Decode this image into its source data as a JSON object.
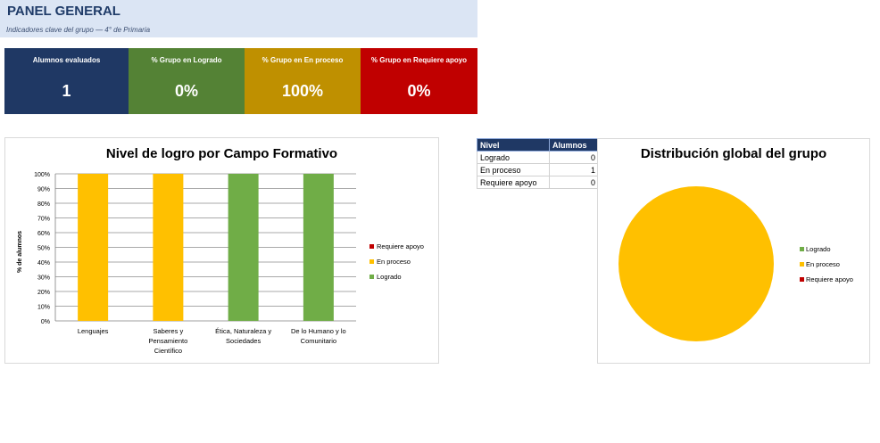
{
  "header": {
    "title": "PANEL GENERAL",
    "subtitle": "Indicadores clave del grupo — 4° de Primaria"
  },
  "kpis": [
    {
      "label": "Alumnos evaluados",
      "value": "1",
      "color": "#1f3864"
    },
    {
      "label": "% Grupo en Logrado",
      "value": "0%",
      "color": "#548235"
    },
    {
      "label": "% Grupo en En proceso",
      "value": "100%",
      "color": "#bf9000"
    },
    {
      "label": "% Grupo en Requiere apoyo",
      "value": "0%",
      "color": "#c00000"
    }
  ],
  "level_table": {
    "headers": [
      "Nivel",
      "Alumnos"
    ],
    "rows": [
      {
        "nivel": "Logrado",
        "alumnos": "0"
      },
      {
        "nivel": "En proceso",
        "alumnos": "1"
      },
      {
        "nivel": "Requiere apoyo",
        "alumnos": "0"
      }
    ]
  },
  "colors": {
    "logrado": "#70ad47",
    "en_proceso": "#ffc000",
    "requiere_apoyo": "#c00000"
  },
  "chart_data": [
    {
      "type": "bar",
      "title": "Nivel de logro por Campo Formativo",
      "ylabel": "% de alumnos",
      "xlabel": "",
      "ylim": [
        0,
        100
      ],
      "yticks": [
        "0%",
        "10%",
        "20%",
        "30%",
        "40%",
        "50%",
        "60%",
        "70%",
        "80%",
        "90%",
        "100%"
      ],
      "stacked": true,
      "categories": [
        [
          "Lenguajes"
        ],
        [
          "Saberes y",
          "Pensamiento",
          "Científico"
        ],
        [
          "Ética, Naturaleza y",
          "Sociedades"
        ],
        [
          "De lo Humano y lo",
          "Comunitario"
        ]
      ],
      "series": [
        {
          "name": "Requiere apoyo",
          "color": "#c00000",
          "values": [
            0,
            0,
            0,
            0
          ]
        },
        {
          "name": "En proceso",
          "color": "#ffc000",
          "values": [
            100,
            100,
            0,
            0
          ]
        },
        {
          "name": "Logrado",
          "color": "#70ad47",
          "values": [
            0,
            0,
            100,
            100
          ]
        }
      ],
      "legend_position": "right",
      "grid": true
    },
    {
      "type": "pie",
      "title": "Distribución global del grupo",
      "slices": [
        {
          "name": "Logrado",
          "value": 0,
          "color": "#70ad47"
        },
        {
          "name": "En proceso",
          "value": 1,
          "color": "#ffc000"
        },
        {
          "name": "Requiere apoyo",
          "value": 0,
          "color": "#c00000"
        }
      ],
      "legend_position": "right"
    }
  ]
}
